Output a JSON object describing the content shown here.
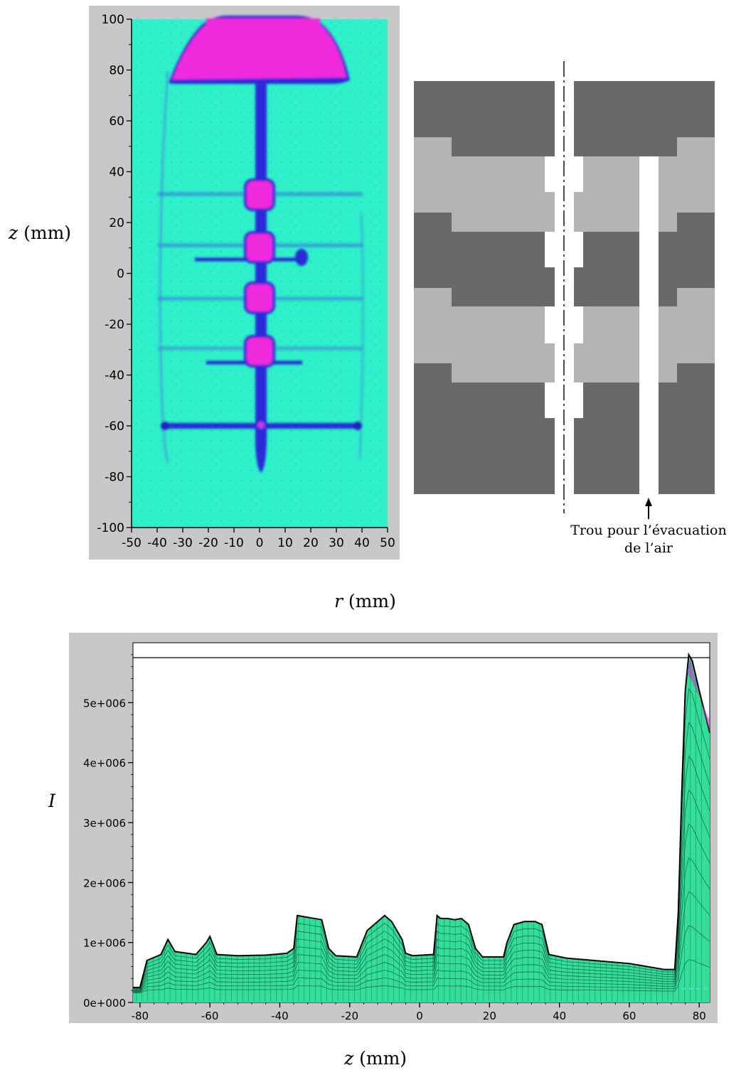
{
  "panel_a": {
    "y_label": "z",
    "y_unit": "(mm)",
    "x_label": "r",
    "x_unit": "(mm)",
    "y_ticks": [
      "100",
      "80",
      "60",
      "40",
      "20",
      "0",
      "-20",
      "-40",
      "-60",
      "-80",
      "-100"
    ],
    "x_ticks": [
      "-50",
      "-40",
      "-30",
      "-20",
      "-10",
      "0",
      "10",
      "20",
      "30",
      "40",
      "50"
    ],
    "colors": {
      "background": "#2ef0c9",
      "dark": "#2a2ad8",
      "peak": "#ee2bdc",
      "frame": "#c8c8c8"
    }
  },
  "panel_b": {
    "caption_line1": "Trou pour l’évacuation",
    "caption_line2": "de l’air",
    "colors": {
      "dark": "#696969",
      "light": "#b3b3b3",
      "hole": "#ffffff"
    }
  },
  "chart_data": {
    "type": "area",
    "title": "",
    "ylabel": "I",
    "xlabel": "z",
    "xlabel_unit": "(mm)",
    "xlim": [
      -82,
      83
    ],
    "ylim": [
      0,
      6000000
    ],
    "x_ticks": [
      "-80",
      "-60",
      "-40",
      "-20",
      "0",
      "20",
      "40",
      "60",
      "80"
    ],
    "y_ticks": [
      "0e+000",
      "1e+006",
      "2e+006",
      "3e+006",
      "4e+006",
      "5e+006"
    ],
    "grid": false,
    "colors": {
      "fill": "#33dd9a",
      "top": "#2fd3e8",
      "peak": "#cc33cc",
      "dashed": "#66e0e0"
    },
    "series": [
      {
        "x": [
          -82,
          -80,
          -78,
          -74,
          -72,
          -70,
          -64,
          -61,
          -60,
          -58,
          -52,
          -44,
          -38,
          -36,
          -35,
          -30,
          -28,
          -26,
          -24,
          -18,
          -15,
          -12,
          -10,
          -8,
          -5,
          -4,
          -2,
          4,
          5,
          6,
          8,
          10,
          12,
          14,
          16,
          18,
          24,
          25,
          27,
          30,
          33,
          35,
          37,
          42,
          50,
          60,
          70,
          73,
          74,
          75,
          76,
          77,
          78,
          80,
          83
        ],
        "values": [
          250000,
          250000,
          700000,
          800000,
          1050000,
          850000,
          800000,
          1000000,
          1100000,
          800000,
          780000,
          790000,
          820000,
          900000,
          1450000,
          1400000,
          1380000,
          900000,
          780000,
          760000,
          1200000,
          1350000,
          1450000,
          1350000,
          1050000,
          820000,
          780000,
          800000,
          1450000,
          1400000,
          1400000,
          1380000,
          1400000,
          1300000,
          900000,
          760000,
          760000,
          1000000,
          1300000,
          1350000,
          1350000,
          1300000,
          800000,
          740000,
          700000,
          650000,
          550000,
          550000,
          1500000,
          3500000,
          5200000,
          5800000,
          5700000,
          5200000,
          4500000
        ]
      }
    ]
  }
}
